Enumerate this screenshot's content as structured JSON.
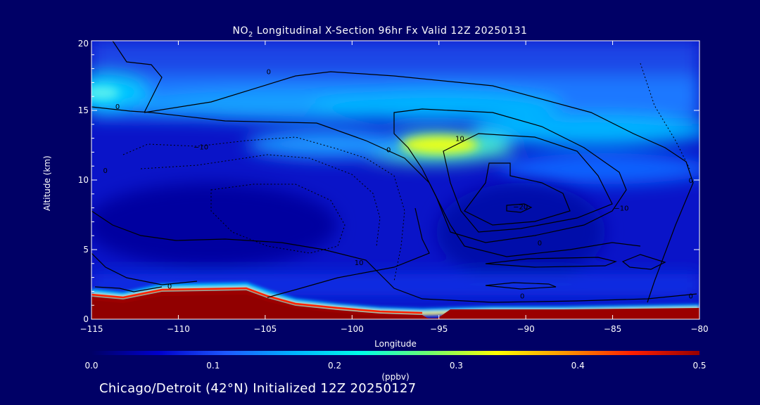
{
  "title": {
    "prefix": "NO",
    "subscript": "2",
    "rest": " Longitudinal X-Section 96hr  Fx Valid 12Z 20250131"
  },
  "footer": "Chicago/Detroit (42°N) Initialized 12Z 20250127",
  "colors": {
    "background": "#000066",
    "text": "#ffffff",
    "contour": "#000000",
    "colormap": [
      "#000066",
      "#0000cc",
      "#1e5aff",
      "#00b4ff",
      "#00ffe6",
      "#6eff6e",
      "#ffff00",
      "#ff9600",
      "#ff1e00",
      "#960000"
    ]
  },
  "chart_data": {
    "type": "heatmap",
    "xlabel": "Longitude",
    "ylabel": "Altitude (km)",
    "xlim": [
      -115,
      -80
    ],
    "ylim": [
      0,
      20
    ],
    "xticks": [
      -115,
      -110,
      -105,
      -100,
      -95,
      -90,
      -85,
      -80
    ],
    "xtick_labels": [
      "−115",
      "−110",
      "−105",
      "−100",
      "−95",
      "−90",
      "−85",
      "−80"
    ],
    "yticks": [
      0,
      5,
      10,
      15,
      20
    ],
    "ytick_labels": [
      "0",
      "5",
      "10",
      "15",
      "20"
    ],
    "colorbar": {
      "label": "(ppbv)",
      "range": [
        0.0,
        0.5
      ],
      "ticks": [
        0.0,
        0.1,
        0.2,
        0.3,
        0.4,
        0.5
      ],
      "tick_labels": [
        "0.0",
        "0.1",
        "0.2",
        "0.3",
        "0.4",
        "0.5"
      ]
    },
    "features": [
      {
        "name": "upper-band",
        "x": [
          -115,
          -80
        ],
        "y_center": 15.2,
        "no2": 0.17
      },
      {
        "name": "left-max",
        "x": -114.3,
        "y": 16.2,
        "no2": 0.25
      },
      {
        "name": "tropopause-max",
        "x": -94.5,
        "y": 12.6,
        "no2": 0.3
      },
      {
        "name": "surface-west",
        "x": [
          -115,
          -103
        ],
        "no2": 0.5
      },
      {
        "name": "surface-east",
        "x": [
          -95,
          -80
        ],
        "no2": 0.5
      }
    ],
    "contour_labels": [
      {
        "text": "0",
        "x": -113.5,
        "y": 15.1
      },
      {
        "text": "0",
        "x": -104.8,
        "y": 17.6
      },
      {
        "text": "−10",
        "x": -108.7,
        "y": 12.2
      },
      {
        "text": "0",
        "x": -97.9,
        "y": 12.0
      },
      {
        "text": "10",
        "x": -93.8,
        "y": 12.8
      },
      {
        "text": "−20",
        "x": -90.3,
        "y": 7.9
      },
      {
        "text": "−10",
        "x": -84.5,
        "y": 7.8
      },
      {
        "text": "0",
        "x": -89.2,
        "y": 5.3
      },
      {
        "text": "0",
        "x": -90.2,
        "y": 1.5
      },
      {
        "text": "10",
        "x": -99.6,
        "y": 3.9
      },
      {
        "text": "0",
        "x": -110.5,
        "y": 2.2
      },
      {
        "text": "0",
        "x": -114.2,
        "y": 10.5
      },
      {
        "text": "0",
        "x": -80.5,
        "y": 9.8
      },
      {
        "text": "0",
        "x": -80.5,
        "y": 1.5
      }
    ]
  }
}
